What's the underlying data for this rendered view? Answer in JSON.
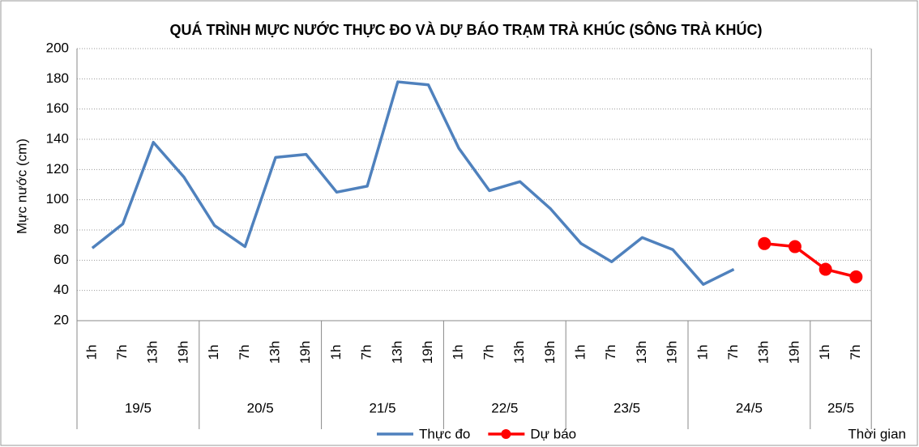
{
  "chart_data": {
    "type": "line",
    "title": "QUÁ TRÌNH MỰC NƯỚC THỰC ĐO VÀ DỰ BÁO TRẠM TRÀ KHÚC (SÔNG TRÀ KHÚC)",
    "y_label": "Mực nước (cm)",
    "x_label": "Thời gian",
    "groups": [
      {
        "label": "19/5",
        "categories": [
          "1h",
          "7h",
          "13h",
          "19h"
        ]
      },
      {
        "label": "20/5",
        "categories": [
          "1h",
          "7h",
          "13h",
          "19h"
        ]
      },
      {
        "label": "21/5",
        "categories": [
          "1h",
          "7h",
          "13h",
          "19h"
        ]
      },
      {
        "label": "22/5",
        "categories": [
          "1h",
          "7h",
          "13h",
          "19h"
        ]
      },
      {
        "label": "23/5",
        "categories": [
          "1h",
          "7h",
          "13h",
          "19h"
        ]
      },
      {
        "label": "24/5",
        "categories": [
          "1h",
          "7h",
          "13h",
          "19h"
        ]
      },
      {
        "label": "25/5",
        "categories": [
          "1h",
          "7h"
        ]
      }
    ],
    "series": [
      {
        "name": "Thực đo",
        "color": "#4f81bd",
        "markers": false,
        "values": [
          68,
          84,
          138,
          115,
          83,
          69,
          128,
          130,
          105,
          109,
          178,
          176,
          134,
          106,
          112,
          94,
          71,
          59,
          75,
          67,
          44,
          54,
          null,
          null,
          null,
          null
        ]
      },
      {
        "name": "Dự báo",
        "color": "#ff0000",
        "markers": true,
        "values": [
          null,
          null,
          null,
          null,
          null,
          null,
          null,
          null,
          null,
          null,
          null,
          null,
          null,
          null,
          null,
          null,
          null,
          null,
          null,
          null,
          null,
          null,
          71,
          69,
          54,
          49
        ]
      }
    ],
    "ylim": [
      20,
      200
    ],
    "yticks": [
      20,
      40,
      60,
      80,
      100,
      120,
      140,
      160,
      180,
      200
    ],
    "grid": true,
    "legend": "bottom"
  }
}
